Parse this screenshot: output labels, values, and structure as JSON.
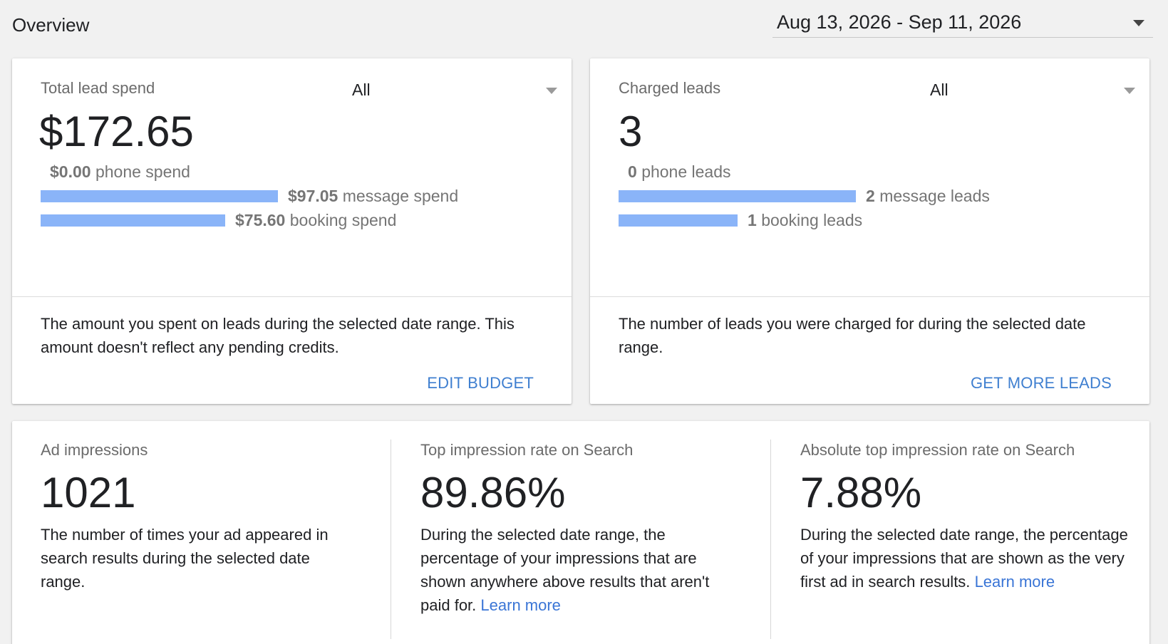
{
  "header": {
    "title": "Overview",
    "date_range": "Aug 13, 2026 - Sep 11, 2026"
  },
  "spend_card": {
    "label": "Total lead spend",
    "filter": "All",
    "total": "$172.65",
    "rows": [
      {
        "amount": "$0.00",
        "text": "phone spend",
        "bar_fraction": 0.0
      },
      {
        "amount": "$97.05",
        "text": "message spend",
        "bar_fraction": 0.562
      },
      {
        "amount": "$75.60",
        "text": "booking spend",
        "bar_fraction": 0.438
      }
    ],
    "description": "The amount you spent on leads during the selected date range. This amount doesn't reflect any pending credits.",
    "action": "EDIT BUDGET"
  },
  "leads_card": {
    "label": "Charged leads",
    "filter": "All",
    "total": "3",
    "rows": [
      {
        "amount": "0",
        "text": "phone leads",
        "bar_fraction": 0.0
      },
      {
        "amount": "2",
        "text": "message leads",
        "bar_fraction": 0.667
      },
      {
        "amount": "1",
        "text": "booking leads",
        "bar_fraction": 0.333
      }
    ],
    "description": "The number of leads you were charged for during the selected date range.",
    "action": "GET MORE LEADS"
  },
  "metrics": [
    {
      "label": "Ad impressions",
      "value": "1021",
      "description": "The number of times your ad appeared in search results during the selected date range.",
      "link": ""
    },
    {
      "label": "Top impression rate on Search",
      "value": "89.86%",
      "description": "During the selected date range, the percentage of your impressions that are shown anywhere above results that aren't paid for.",
      "link": "Learn more"
    },
    {
      "label": "Absolute top impression rate on Search",
      "value": "7.88%",
      "description": "During the selected date range, the percentage of your impressions that are shown as the very first ad in search results.",
      "link": "Learn more"
    }
  ],
  "colors": {
    "bar": "#8ab4f8",
    "link": "#3a75d6",
    "action": "#3f7fd0",
    "background": "#f1f1f1"
  }
}
